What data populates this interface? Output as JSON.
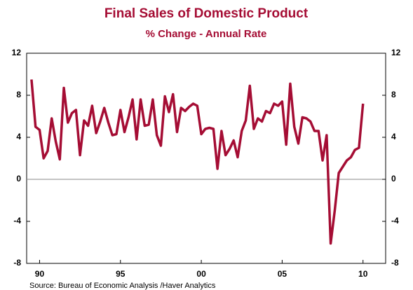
{
  "chart_data": {
    "type": "line",
    "title": "Final Sales of Domestic Product",
    "subtitle": "% Change - Annual Rate",
    "source": "Source:  Bureau of Economic Analysis /Haver Analytics",
    "x": [
      1990,
      1990.25,
      1990.5,
      1990.75,
      1991,
      1991.25,
      1991.5,
      1991.75,
      1992,
      1992.25,
      1992.5,
      1992.75,
      1993,
      1993.25,
      1993.5,
      1993.75,
      1994,
      1994.25,
      1994.5,
      1994.75,
      1995,
      1995.25,
      1995.5,
      1995.75,
      1996,
      1996.25,
      1996.5,
      1996.75,
      1997,
      1997.25,
      1997.5,
      1997.75,
      1998,
      1998.25,
      1998.5,
      1998.75,
      1999,
      1999.25,
      1999.5,
      1999.75,
      2000,
      2000.25,
      2000.5,
      2000.75,
      2001,
      2001.25,
      2001.5,
      2001.75,
      2002,
      2002.25,
      2002.5,
      2002.75,
      2003,
      2003.25,
      2003.5,
      2003.75,
      2004,
      2004.25,
      2004.5,
      2004.75,
      2005,
      2005.25,
      2005.5,
      2005.75,
      2006,
      2006.25,
      2006.5,
      2006.75,
      2007,
      2007.25,
      2007.5,
      2007.75,
      2008,
      2008.25,
      2008.5,
      2008.75,
      2009,
      2009.25,
      2009.5,
      2009.75,
      2010,
      2010.25,
      2010.5
    ],
    "series": [
      {
        "name": "Final Sales of Domestic Product",
        "color": "#a50d34",
        "values": [
          9.5,
          5.0,
          4.7,
          2.0,
          2.7,
          5.8,
          3.6,
          1.9,
          8.7,
          5.4,
          6.3,
          6.6,
          2.3,
          5.6,
          5.1,
          7.0,
          4.4,
          5.5,
          6.8,
          5.4,
          4.2,
          4.3,
          6.6,
          4.5,
          5.9,
          7.6,
          3.8,
          7.6,
          5.1,
          5.2,
          7.6,
          4.2,
          3.2,
          7.9,
          6.4,
          8.1,
          4.5,
          6.8,
          6.5,
          6.9,
          7.2,
          7.0,
          4.3,
          4.8,
          4.9,
          4.8,
          1.0,
          4.6,
          2.3,
          2.9,
          3.7,
          2.1,
          4.6,
          5.6,
          8.9,
          4.8,
          5.8,
          5.5,
          6.5,
          6.3,
          7.2,
          7.0,
          7.4,
          3.3,
          9.1,
          5.0,
          3.4,
          5.9,
          5.8,
          5.5,
          4.6,
          4.6,
          1.8,
          4.2,
          -6.1,
          -3.0,
          0.6,
          1.2,
          1.8,
          2.1,
          2.8,
          3.0,
          7.2
        ]
      }
    ],
    "xlim": [
      1989.7,
      2011.9
    ],
    "xticks": [
      {
        "value": 1990.5,
        "label": "90"
      },
      {
        "value": 1995.5,
        "label": "95"
      },
      {
        "value": 2000.5,
        "label": "00"
      },
      {
        "value": 2005.5,
        "label": "05"
      },
      {
        "value": 2010.5,
        "label": "10"
      }
    ],
    "ylim": [
      -8,
      12
    ],
    "yticks": [
      -8,
      -4,
      0,
      4,
      8,
      12
    ],
    "y2lim": [
      -8,
      12
    ],
    "y2ticks": [
      -8,
      -4,
      0,
      4,
      8,
      12
    ]
  }
}
